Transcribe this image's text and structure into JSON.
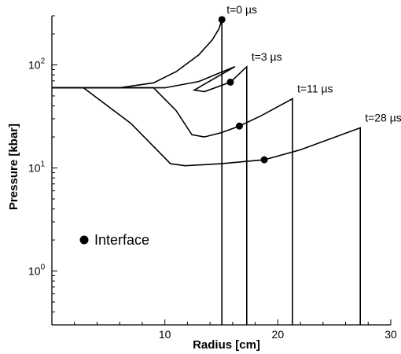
{
  "chart_data": {
    "type": "line",
    "title": "",
    "xlabel": "Radius [cm]",
    "ylabel": "Pressure [kbar]",
    "xlim": [
      0,
      30
    ],
    "ylim": [
      0.3,
      300
    ],
    "yscale": "log",
    "grid": false,
    "x_ticks": [
      10,
      20,
      30
    ],
    "y_ticks": [
      {
        "value": 100,
        "base": "10",
        "exp": "2"
      },
      {
        "value": 10,
        "base": "10",
        "exp": "1"
      },
      {
        "value": 1,
        "base": "10",
        "exp": "0"
      }
    ],
    "series": [
      {
        "name": "t=0 µs",
        "x": [
          0,
          6,
          9,
          11,
          13,
          14.2,
          14.8,
          15.05,
          15.05
        ],
        "y": [
          60,
          60,
          67,
          86,
          125,
          175,
          225,
          275,
          0.3
        ],
        "marker": {
          "x": 15.05,
          "y": 275
        }
      },
      {
        "name": "t=3 µs",
        "x": [
          0,
          10,
          13,
          16.2,
          12.6,
          13.5,
          15.8,
          17.25,
          17.25
        ],
        "y": [
          60,
          60,
          69,
          96,
          57,
          55,
          68,
          96,
          0.3
        ],
        "marker": {
          "x": 15.8,
          "y": 68
        }
      },
      {
        "name": "t=11 µs",
        "x": [
          0,
          9,
          11,
          12.4,
          13.5,
          15,
          16.6,
          18.5,
          21.3,
          21.3
        ],
        "y": [
          60,
          60,
          36,
          21,
          20,
          22,
          25.5,
          32,
          47,
          0.3
        ],
        "marker": {
          "x": 16.6,
          "y": 25.5
        }
      },
      {
        "name": "t=28 µs",
        "x": [
          0,
          2.8,
          7,
          10.5,
          11.8,
          15,
          18.8,
          22,
          27.3,
          27.3
        ],
        "y": [
          60,
          60,
          27,
          11,
          10.5,
          11,
          12,
          15,
          24.5,
          0.3
        ],
        "marker": {
          "x": 18.8,
          "y": 12
        }
      }
    ],
    "series_label_colors": [
      "#000000"
    ],
    "legend": {
      "label": "Interface",
      "marker": "filled-circle",
      "position": "left"
    }
  }
}
